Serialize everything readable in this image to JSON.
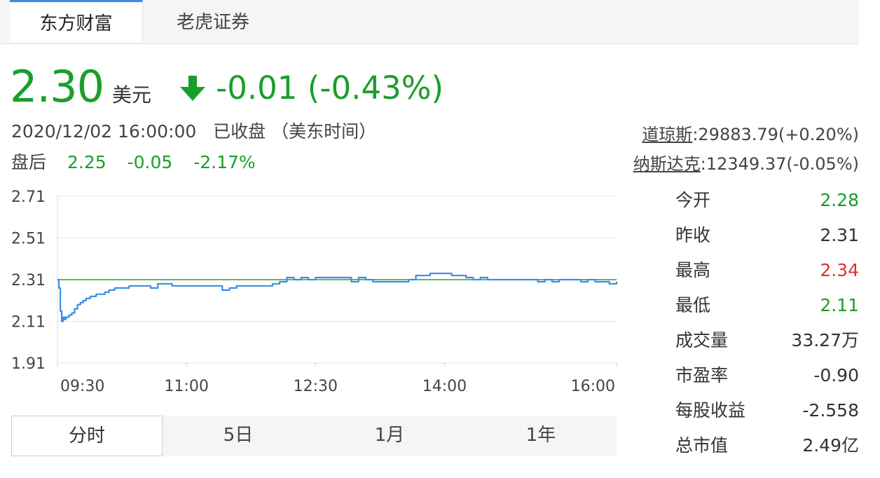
{
  "tabs": [
    {
      "label": "东方财富"
    },
    {
      "label": "老虎证券"
    }
  ],
  "quote": {
    "price": "2.30",
    "unit": "美元",
    "arrow_icon": "down-arrow",
    "change": "-0.01 (-0.43%)",
    "datetime": "2020/12/02 16:00:00",
    "status": "已收盘",
    "timezone": "（美东时间）",
    "after_hours": {
      "label": "盘后",
      "price": "2.25",
      "change": "-0.05",
      "percent": "-2.17%"
    }
  },
  "indices": [
    {
      "name": "道琼斯",
      "value": ":29883.79(+0.20%)"
    },
    {
      "name": "纳斯达克",
      "value": ":12349.37(-0.05%)"
    }
  ],
  "stats": [
    {
      "label": "今开",
      "value": "2.28",
      "color": "#1a9e2b"
    },
    {
      "label": "昨收",
      "value": "2.31",
      "color": "#333333"
    },
    {
      "label": "最高",
      "value": "2.34",
      "color": "#e0312d"
    },
    {
      "label": "最低",
      "value": "2.11",
      "color": "#1a9e2b"
    },
    {
      "label": "成交量",
      "value": "33.27万",
      "color": "#333333"
    },
    {
      "label": "市盈率",
      "value": "-0.90",
      "color": "#333333"
    },
    {
      "label": "每股收益",
      "value": "-2.558",
      "color": "#333333"
    },
    {
      "label": "总市值",
      "value": "2.49亿",
      "color": "#333333"
    }
  ],
  "periods": [
    {
      "label": "分时"
    },
    {
      "label": "5日"
    },
    {
      "label": "1月"
    },
    {
      "label": "1年"
    }
  ],
  "colors": {
    "up": "#e0312d",
    "down": "#1a9e2b",
    "line": "#3a8ee6",
    "prev_close": "#2ca02c",
    "tab_accent": "#3a8ee6"
  },
  "chart_data": {
    "type": "line",
    "y_ticks": [
      "2.71",
      "2.51",
      "2.31",
      "2.11",
      "1.91"
    ],
    "x_ticks": [
      "09:30",
      "11:00",
      "12:30",
      "14:00",
      "16:00"
    ],
    "ylim": [
      1.91,
      2.71
    ],
    "xlim_minutes": [
      0,
      390
    ],
    "prev_close": 2.31,
    "series": [
      {
        "x": [
          0,
          1,
          2,
          3,
          4,
          5,
          6,
          8,
          10,
          12,
          14,
          16,
          18,
          20,
          23,
          27,
          30,
          33,
          36,
          40,
          45,
          50,
          55,
          60,
          65,
          70,
          75,
          80,
          85,
          90,
          95,
          100,
          105,
          110,
          115,
          120,
          125,
          130,
          135,
          140,
          145,
          150,
          155,
          160,
          165,
          170,
          175,
          180,
          185,
          190,
          195,
          200,
          205,
          210,
          215,
          220,
          225,
          230,
          235,
          240,
          245,
          250,
          255,
          260,
          265,
          270,
          275,
          280,
          285,
          290,
          295,
          300,
          305,
          310,
          315,
          320,
          325,
          330,
          335,
          340,
          345,
          350,
          355,
          360,
          365,
          370,
          375,
          380,
          385,
          390
        ],
        "y": [
          2.31,
          2.27,
          2.16,
          2.11,
          2.13,
          2.12,
          2.13,
          2.14,
          2.15,
          2.17,
          2.19,
          2.2,
          2.21,
          2.22,
          2.23,
          2.24,
          2.24,
          2.25,
          2.26,
          2.27,
          2.27,
          2.28,
          2.28,
          2.28,
          2.27,
          2.29,
          2.29,
          2.28,
          2.28,
          2.28,
          2.28,
          2.28,
          2.28,
          2.28,
          2.26,
          2.27,
          2.28,
          2.28,
          2.28,
          2.28,
          2.28,
          2.29,
          2.3,
          2.32,
          2.31,
          2.32,
          2.31,
          2.32,
          2.32,
          2.32,
          2.32,
          2.32,
          2.3,
          2.32,
          2.31,
          2.3,
          2.3,
          2.3,
          2.3,
          2.3,
          2.31,
          2.33,
          2.33,
          2.34,
          2.34,
          2.34,
          2.33,
          2.33,
          2.32,
          2.31,
          2.32,
          2.31,
          2.31,
          2.31,
          2.31,
          2.31,
          2.31,
          2.31,
          2.3,
          2.31,
          2.3,
          2.31,
          2.31,
          2.31,
          2.3,
          2.31,
          2.3,
          2.3,
          2.29,
          2.3
        ]
      }
    ],
    "grid": true
  }
}
